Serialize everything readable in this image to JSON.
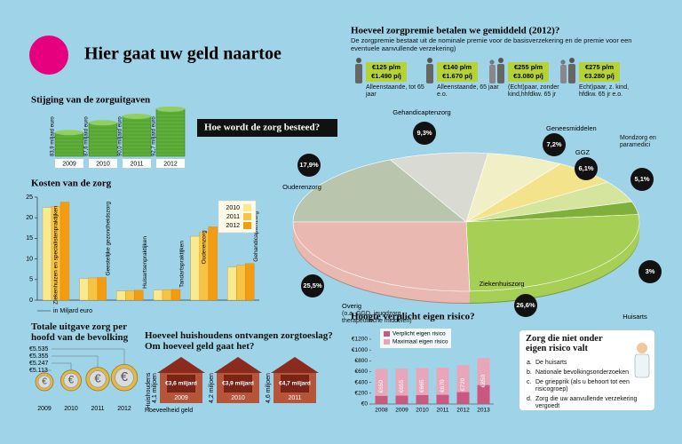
{
  "header": {
    "title": "Hier gaat uw geld naartoe"
  },
  "growth": {
    "title": "Stijging van de zorguitgaven",
    "categories": [
      "2009",
      "2010",
      "2011",
      "2012"
    ],
    "values": [
      83.9,
      87.6,
      90.0,
      92.7
    ],
    "value_labels": [
      "83,9 miljard euro",
      "87,6 miljard euro",
      "90,0 miljard euro",
      "92,7 miljard euro"
    ],
    "color": "#5fae3a"
  },
  "costs": {
    "type": "bar",
    "title": "Kosten van de zorg",
    "ylabel": "in Miljard euro",
    "categories": [
      "Ziekenhuizen en specialistenpraktijken",
      "Geestelijke gezondheidszorg",
      "Huisartsenpraktijken",
      "Tandartspraktijken",
      "Ouderenzorg",
      "Gehandicaptenzorg"
    ],
    "series": [
      {
        "name": "2010",
        "color": "#fbe98e",
        "values": [
          22.5,
          5.2,
          2.2,
          2.4,
          15.5,
          8.0
        ]
      },
      {
        "name": "2011",
        "color": "#f6c343",
        "values": [
          22.8,
          5.4,
          2.3,
          2.5,
          16.5,
          8.5
        ]
      },
      {
        "name": "2012",
        "color": "#f39c12",
        "values": [
          23.8,
          5.5,
          2.4,
          2.6,
          17.8,
          8.9
        ]
      }
    ],
    "ylim": [
      0,
      25
    ],
    "yticks": [
      0,
      5,
      10,
      15,
      20,
      25
    ]
  },
  "per_capita": {
    "title": "Totale uitgave zorg per hoofd van de bevolking",
    "years": [
      "2009",
      "2010",
      "2011",
      "2012"
    ],
    "amounts": [
      "€5.113",
      "€5.247",
      "€5.355",
      "€5.535"
    ]
  },
  "households": {
    "title": "Hoeveel huishoudens ontvangen zorgtoeslag? Om hoeveel geld gaat het?",
    "axis_households": "Huishoudens",
    "axis_money": "Hoeveelheid geld",
    "years": [
      "2009",
      "2010",
      "2011"
    ],
    "households": [
      "4,1 miljoen",
      "4,2 miljoen",
      "4,6 miljoen"
    ],
    "amounts": [
      "€3,6 miljard",
      "€3,9 miljard",
      "€4,7 miljard"
    ]
  },
  "premium": {
    "title": "Hoeveel zorgpremie betalen we gemiddeld (2012)?",
    "subtitle": "De zorgpremie bestaat uit de nominale premie voor de basisverzekering en de premie voor een eventuele aanvullende verzekering)",
    "items": [
      {
        "monthly": "€125 p/m",
        "yearly": "€1.490 p/j",
        "label": "Alleenstaande, tot 65 jaar"
      },
      {
        "monthly": "€140 p/m",
        "yearly": "€1.670 p/j",
        "label": "Alleenstaande, 65 jaar e.o."
      },
      {
        "monthly": "€255 p/m",
        "yearly": "€3.080 p/j",
        "label": "(Echt)paar, zonder kind,hhfdkw. 65 jr"
      },
      {
        "monthly": "€275 p/m",
        "yearly": "€3.280 p/j",
        "label": "Echt)paar, z. kind, hfdkw. 65 jr e.o."
      }
    ]
  },
  "spending": {
    "type": "pie",
    "title": "Hoe wordt de zorg besteed?",
    "categories": [
      "Ouderenzorg",
      "Gehandicaptenzorg",
      "Geneesmiddelen",
      "GGZ",
      "Mondzorg en paramedici",
      "Huisarts",
      "Ziekenhuiszorg",
      "Overig"
    ],
    "values": [
      17.9,
      9.3,
      7.2,
      6.1,
      5.1,
      3,
      26.6,
      25.5
    ],
    "value_labels": [
      "17,9%",
      "9,3%",
      "7,2%",
      "6,1%",
      "5,1%",
      "3%",
      "26,6%",
      "25,5%"
    ],
    "colors": [
      "#b9c6ad",
      "#d9dbd2",
      "#f1efc6",
      "#f3e38a",
      "#d6e59e",
      "#7fb03a",
      "#a6cf55",
      "#e9b9b1"
    ],
    "note": "(o.a. GGD, jeugdzorg, therapeutische middelen)"
  },
  "deductible": {
    "type": "bar",
    "title": "Hoogte verplicht eigen risico?",
    "categories": [
      "2008",
      "2009",
      "2010",
      "2011",
      "2012",
      "2013"
    ],
    "series": [
      {
        "name": "Verplicht eigen risico",
        "color": "#c9577f",
        "values": [
          150,
          155,
          165,
          170,
          220,
          350
        ]
      },
      {
        "name": "Maximaal eigen risico",
        "color": "#e8a6b8",
        "values": [
          650,
          655,
          665,
          670,
          720,
          850
        ],
        "value_labels": [
          "€650",
          "€655",
          "€665",
          "€670",
          "€720",
          "€850"
        ]
      }
    ],
    "ylim": [
      0,
      1200
    ],
    "yticks": [
      {
        "value": 0,
        "label": "€0"
      },
      {
        "value": 200,
        "label": "€200"
      },
      {
        "value": 400,
        "label": "€400"
      },
      {
        "value": 600,
        "label": "€600"
      },
      {
        "value": 800,
        "label": "€800"
      },
      {
        "value": 1000,
        "label": "€1000"
      },
      {
        "value": 1200,
        "label": "€1200"
      }
    ]
  },
  "exempt": {
    "title": "Zorg die niet onder eigen risico valt",
    "items": [
      {
        "letter": "a.",
        "text": "De huisarts"
      },
      {
        "letter": "b.",
        "text": "Nationale bevolkingsonderzoeken"
      },
      {
        "letter": "c.",
        "text": "De griepprik (als u behoort tot een risicogroep)"
      },
      {
        "letter": "d.",
        "text": "Zorg die uw aanvullende verzekering vergoedt"
      }
    ]
  }
}
